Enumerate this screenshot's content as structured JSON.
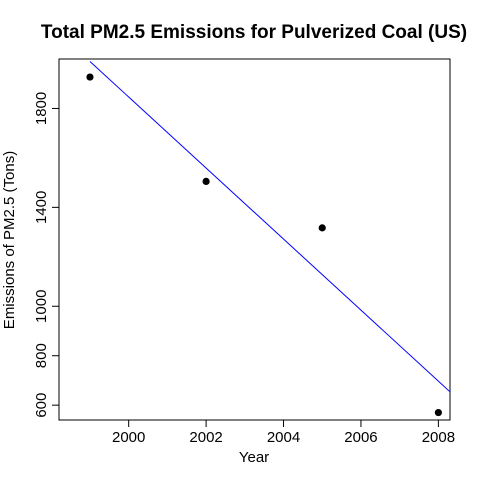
{
  "chart_data": {
    "type": "scatter",
    "title": "Total PM2.5 Emissions for Pulverized Coal (US)",
    "xlabel": "Year",
    "ylabel": "Emissions of PM2.5 (Tons)",
    "xlim": [
      1998.2,
      2008.3
    ],
    "ylim": [
      540,
      2000
    ],
    "x_ticks": [
      2000,
      2002,
      2004,
      2006,
      2008
    ],
    "y_ticks": [
      600,
      800,
      1000,
      1400,
      1800
    ],
    "grid": false,
    "points": [
      {
        "x": 1999,
        "y": 1927
      },
      {
        "x": 2002,
        "y": 1505
      },
      {
        "x": 2005,
        "y": 1317
      },
      {
        "x": 2008,
        "y": 570
      }
    ],
    "trend_line": {
      "x": [
        1999,
        2008.3
      ],
      "y": [
        1990,
        654
      ],
      "color": "#0000ff"
    },
    "point_color": "#000000"
  }
}
